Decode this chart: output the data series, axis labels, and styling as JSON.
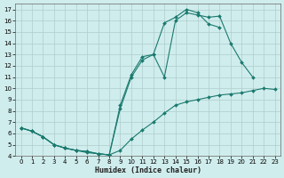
{
  "xlabel": "Humidex (Indice chaleur)",
  "background_color": "#d0eded",
  "grid_color": "#b0cccc",
  "line_color": "#1a7a6e",
  "xlim": [
    -0.5,
    23.5
  ],
  "ylim": [
    4,
    17.5
  ],
  "yticks": [
    4,
    5,
    6,
    7,
    8,
    9,
    10,
    11,
    12,
    13,
    14,
    15,
    16,
    17
  ],
  "xticks": [
    0,
    1,
    2,
    3,
    4,
    5,
    6,
    7,
    8,
    9,
    10,
    11,
    12,
    13,
    14,
    15,
    16,
    17,
    18,
    19,
    20,
    21,
    22,
    23
  ],
  "line1_x": [
    0,
    1,
    2,
    3,
    4,
    5,
    6,
    7,
    8,
    9,
    10,
    11,
    12,
    13,
    14,
    15,
    16,
    17,
    18
  ],
  "line1_y": [
    6.5,
    6.2,
    5.7,
    5.0,
    4.7,
    4.5,
    4.4,
    4.2,
    4.1,
    8.5,
    11.2,
    12.8,
    13.0,
    15.8,
    16.3,
    17.0,
    16.7,
    15.7,
    15.4
  ],
  "line2_x": [
    0,
    1,
    2,
    3,
    4,
    5,
    6,
    7,
    8,
    9,
    10,
    11,
    12,
    13,
    14,
    15,
    16,
    17,
    18,
    19,
    20,
    21
  ],
  "line2_y": [
    6.5,
    6.2,
    5.7,
    5.0,
    4.7,
    4.5,
    4.4,
    4.2,
    4.1,
    8.2,
    11.0,
    12.5,
    13.0,
    11.0,
    16.0,
    16.7,
    16.5,
    16.3,
    16.4,
    14.0,
    12.3,
    11.0
  ],
  "line3_x": [
    0,
    1,
    2,
    3,
    4,
    5,
    6,
    7,
    8,
    9,
    10,
    11,
    12,
    13,
    14,
    15,
    16,
    17,
    18,
    19,
    20,
    21,
    22,
    23
  ],
  "line3_y": [
    6.5,
    6.2,
    5.7,
    5.0,
    4.7,
    4.5,
    4.3,
    4.2,
    4.1,
    4.5,
    5.5,
    6.3,
    7.0,
    7.8,
    8.5,
    8.8,
    9.0,
    9.2,
    9.4,
    9.5,
    9.6,
    9.8,
    10.0,
    9.9
  ]
}
